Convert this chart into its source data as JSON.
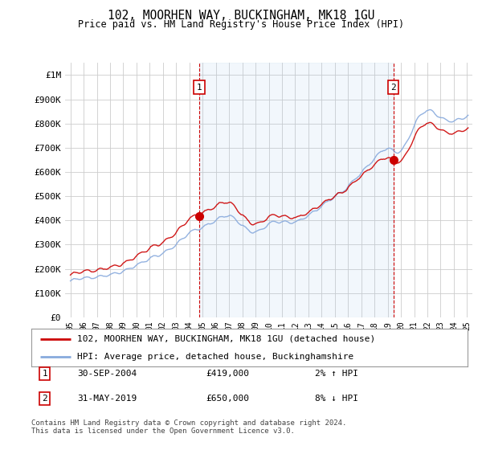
{
  "title": "102, MOORHEN WAY, BUCKINGHAM, MK18 1GU",
  "subtitle": "Price paid vs. HM Land Registry's House Price Index (HPI)",
  "legend_line1": "102, MOORHEN WAY, BUCKINGHAM, MK18 1GU (detached house)",
  "legend_line2": "HPI: Average price, detached house, Buckinghamshire",
  "annotation1_date": "30-SEP-2004",
  "annotation1_price": "£419,000",
  "annotation1_hpi": "2% ↑ HPI",
  "annotation1_year": 2004.75,
  "annotation1_value": 419000,
  "annotation2_date": "31-MAY-2019",
  "annotation2_price": "£650,000",
  "annotation2_hpi": "8% ↓ HPI",
  "annotation2_year": 2019.42,
  "annotation2_value": 650000,
  "footer": "Contains HM Land Registry data © Crown copyright and database right 2024.\nThis data is licensed under the Open Government Licence v3.0.",
  "line_color_red": "#cc0000",
  "line_color_blue": "#88aadd",
  "fill_color": "#ddeeff",
  "dashed_color": "#cc0000",
  "background_color": "#ffffff",
  "grid_color": "#cccccc",
  "ylim": [
    0,
    1050000
  ],
  "yticks": [
    0,
    100000,
    200000,
    300000,
    400000,
    500000,
    600000,
    700000,
    800000,
    900000,
    1000000
  ],
  "ytick_labels": [
    "£0",
    "£100K",
    "£200K",
    "£300K",
    "£400K",
    "£500K",
    "£600K",
    "£700K",
    "£800K",
    "£900K",
    "£1M"
  ],
  "xtick_years": [
    1995,
    1996,
    1997,
    1998,
    1999,
    2000,
    2001,
    2002,
    2003,
    2004,
    2005,
    2006,
    2007,
    2008,
    2009,
    2010,
    2011,
    2012,
    2013,
    2014,
    2015,
    2016,
    2017,
    2018,
    2019,
    2020,
    2021,
    2022,
    2023,
    2024,
    2025
  ]
}
